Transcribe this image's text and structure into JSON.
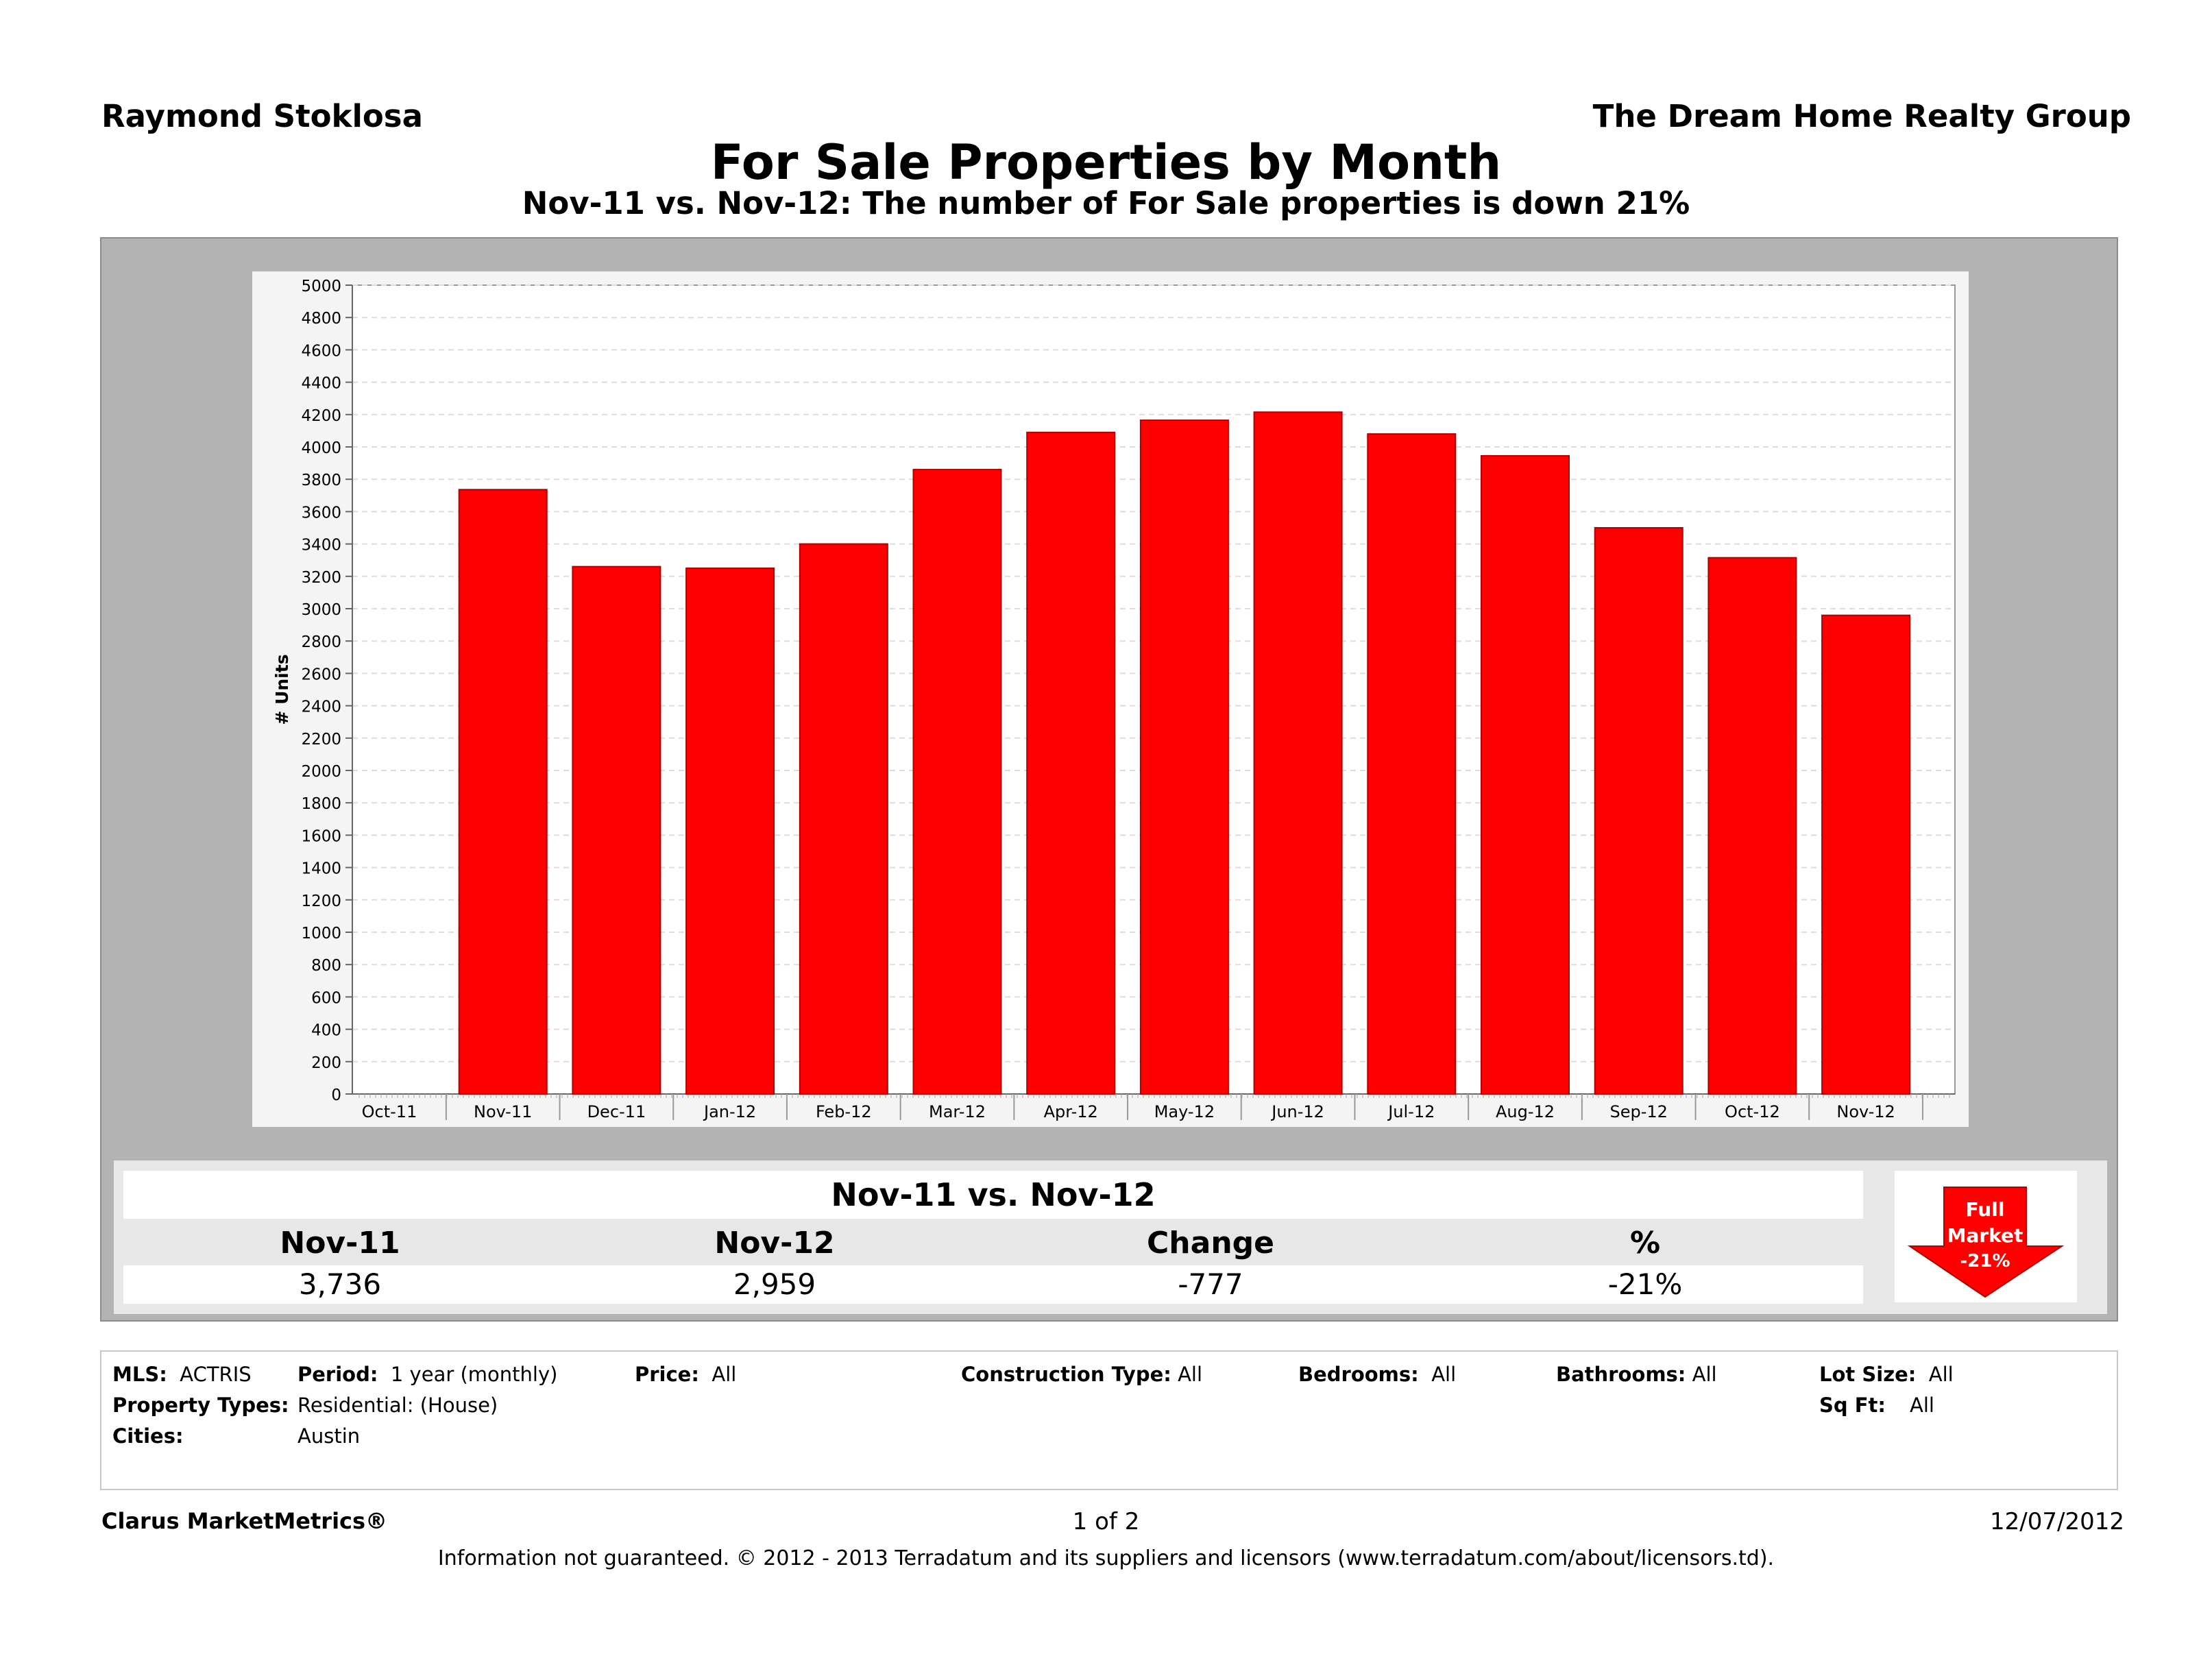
{
  "header": {
    "agent_name": "Raymond Stoklosa",
    "company": "The Dream Home Realty Group"
  },
  "chart_data": {
    "type": "bar",
    "title": "For Sale Properties by Month",
    "subtitle": "Nov-11 vs. Nov-12: The number of For Sale properties is down 21%",
    "ylabel": "# Units",
    "xlabel": "",
    "ylim": [
      0,
      5000
    ],
    "yticks": [
      0,
      200,
      400,
      600,
      800,
      1000,
      1200,
      1400,
      1600,
      1800,
      2000,
      2200,
      2400,
      2600,
      2800,
      3000,
      3200,
      3400,
      3600,
      3800,
      4000,
      4200,
      4400,
      4600,
      4800,
      5000
    ],
    "axis_categories": [
      "Oct-11",
      "Nov-11",
      "Dec-11",
      "Jan-12",
      "Feb-12",
      "Mar-12",
      "Apr-12",
      "May-12",
      "Jun-12",
      "Jul-12",
      "Aug-12",
      "Sep-12",
      "Oct-12",
      "Nov-12"
    ],
    "categories": [
      "Nov-11",
      "Dec-11",
      "Jan-12",
      "Feb-12",
      "Mar-12",
      "Apr-12",
      "May-12",
      "Jun-12",
      "Jul-12",
      "Aug-12",
      "Sep-12",
      "Oct-12",
      "Nov-12"
    ],
    "values": [
      3736,
      3260,
      3250,
      3400,
      3860,
      4090,
      4165,
      4215,
      4080,
      3945,
      3500,
      3315,
      2959
    ],
    "bar_color": "#ff0000",
    "grid": true
  },
  "summary": {
    "title": "Nov-11 vs. Nov-12",
    "headers": [
      "Nov-11",
      "Nov-12",
      "Change",
      "%"
    ],
    "values": [
      "3,736",
      "2,959",
      "-777",
      "-21%"
    ],
    "badge": {
      "line1": "Full",
      "line2": "Market",
      "line3": "-21%",
      "color": "#ff0000",
      "icon": "down-arrow-icon"
    }
  },
  "criteria": {
    "mls_label": "MLS:",
    "mls_value": "ACTRIS",
    "period_label": "Period:",
    "period_value": "1 year (monthly)",
    "price_label": "Price:",
    "price_value": "All",
    "construction_label": "Construction Type:",
    "construction_value": "All",
    "bedrooms_label": "Bedrooms:",
    "bedrooms_value": "All",
    "bathrooms_label": "Bathrooms:",
    "bathrooms_value": "All",
    "lotsize_label": "Lot Size:",
    "lotsize_value": "All",
    "proptypes_label": "Property Types:",
    "proptypes_value": "Residential: (House)",
    "sqft_label": "Sq Ft:",
    "sqft_value": "All",
    "cities_label": "Cities:",
    "cities_value": "Austin"
  },
  "footer": {
    "brand": "Clarus MarketMetrics®",
    "page": "1 of 2",
    "date": "12/07/2012",
    "disclaimer": "Information not guaranteed.  © 2012 - 2013 Terradatum and its suppliers and licensors (www.terradatum.com/about/licensors.td)."
  }
}
